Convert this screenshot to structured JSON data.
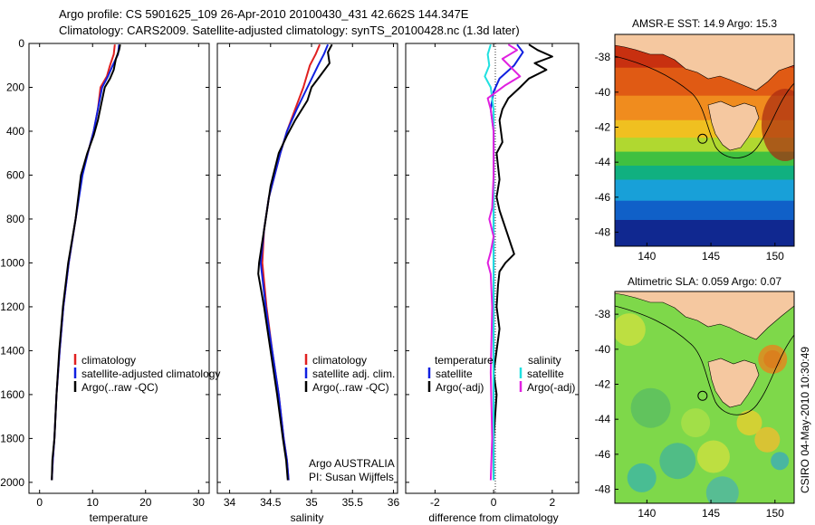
{
  "header": {
    "line1": "Argo profile: CS 5901625_109 26-Apr-2010 20100430_431 42.662S 144.347E",
    "line2": "Climatology: CARS2009. Satellite-adjusted climatology: synTS_20100428.nc (1.3d later)"
  },
  "colors": {
    "climatology": "#e02020",
    "satellite": "#1020e0",
    "argo": "#000000",
    "sal_satellite": "#20e0e0",
    "sal_argo": "#e020e0",
    "land": "#f5c8a0"
  },
  "chart_data": [
    {
      "id": "temperature",
      "type": "line",
      "xlabel": "temperature",
      "ylabel": "",
      "xlim": [
        -2,
        32
      ],
      "ylim": [
        2050,
        0
      ],
      "xticks": [
        "0",
        "10",
        "20",
        "30"
      ],
      "xtick_values": [
        0,
        10,
        20,
        30
      ],
      "yticks": [
        "0",
        "200",
        "400",
        "600",
        "800",
        "1000",
        "1200",
        "1400",
        "1600",
        "1800",
        "2000"
      ],
      "ytick_values": [
        0,
        200,
        400,
        600,
        800,
        1000,
        1200,
        1400,
        1600,
        1800,
        2000
      ],
      "legend": [
        "climatology",
        "satellite-adjusted climatology",
        "Argo(..raw -QC)"
      ],
      "series": [
        {
          "name": "climatology",
          "color_key": "climatology",
          "x": [
            14.2,
            14.0,
            13.3,
            12.7,
            11.5,
            11.0,
            10.2,
            9.1,
            8.0,
            6.8,
            5.5,
            4.5,
            3.8,
            3.2,
            2.8,
            2.5,
            2.3
          ],
          "y": [
            5,
            50,
            100,
            150,
            200,
            300,
            400,
            500,
            600,
            800,
            1000,
            1200,
            1400,
            1600,
            1800,
            1900,
            1990
          ]
        },
        {
          "name": "satellite-adjusted climatology",
          "color_key": "satellite",
          "x": [
            15.0,
            14.8,
            13.8,
            12.9,
            11.8,
            11.0,
            10.2,
            9.1,
            8.1,
            6.8,
            5.5,
            4.5,
            3.8,
            3.2,
            2.8,
            2.5,
            2.3
          ],
          "y": [
            5,
            50,
            100,
            150,
            200,
            300,
            400,
            500,
            600,
            800,
            1000,
            1200,
            1400,
            1600,
            1800,
            1900,
            1990
          ]
        },
        {
          "name": "Argo(..raw -QC)",
          "color_key": "argo",
          "x": [
            15.2,
            15.0,
            14.4,
            14.0,
            13.3,
            12.3,
            11.6,
            11.0,
            10.2,
            9.0,
            7.8,
            6.8,
            5.4,
            4.4,
            3.7,
            3.2,
            2.8,
            2.4,
            2.3
          ],
          "y": [
            5,
            30,
            70,
            120,
            160,
            200,
            280,
            350,
            420,
            500,
            600,
            800,
            1000,
            1200,
            1400,
            1600,
            1800,
            1900,
            1990
          ]
        }
      ]
    },
    {
      "id": "salinity",
      "type": "line",
      "xlabel": "salinity",
      "ylabel": "",
      "xlim": [
        33.85,
        36.05
      ],
      "ylim": [
        2050,
        0
      ],
      "xticks": [
        "34",
        "34.5",
        "35",
        "35.5",
        "36"
      ],
      "xtick_values": [
        34,
        34.5,
        35,
        35.5,
        36
      ],
      "legend": [
        "climatology",
        "satellite adj. clim.",
        "Argo(..raw -QC)"
      ],
      "annotation": [
        "Argo AUSTRALIA",
        "PI: Susan Wijffels"
      ],
      "series": [
        {
          "name": "climatology",
          "color_key": "climatology",
          "x": [
            35.1,
            35.05,
            34.98,
            34.9,
            34.8,
            34.7,
            34.62,
            34.55,
            34.48,
            34.42,
            34.4,
            34.45,
            34.52,
            34.6,
            34.66,
            34.7,
            34.72
          ],
          "y": [
            5,
            50,
            100,
            200,
            300,
            400,
            500,
            600,
            700,
            850,
            1000,
            1200,
            1400,
            1600,
            1800,
            1900,
            1990
          ]
        },
        {
          "name": "satellite adj. clim.",
          "color_key": "satellite",
          "x": [
            35.2,
            35.15,
            35.08,
            34.95,
            34.82,
            34.7,
            34.62,
            34.55,
            34.48,
            34.42,
            34.38,
            34.44,
            34.52,
            34.6,
            34.66,
            34.7,
            34.72
          ],
          "y": [
            5,
            50,
            100,
            200,
            300,
            400,
            500,
            600,
            700,
            850,
            1000,
            1200,
            1400,
            1600,
            1800,
            1900,
            1990
          ]
        },
        {
          "name": "Argo(..raw -QC)",
          "color_key": "argo",
          "x": [
            35.25,
            35.2,
            35.22,
            35.1,
            35.0,
            34.95,
            34.8,
            34.7,
            34.6,
            34.5,
            34.42,
            34.36,
            34.35,
            34.42,
            34.5,
            34.58,
            34.65,
            34.69,
            34.71
          ],
          "y": [
            5,
            40,
            90,
            150,
            200,
            260,
            350,
            420,
            500,
            650,
            850,
            1000,
            1050,
            1200,
            1400,
            1600,
            1800,
            1900,
            1990
          ]
        }
      ]
    },
    {
      "id": "difference",
      "type": "line",
      "xlabel": "difference from climatology",
      "ylabel": "",
      "xlim": [
        -3,
        2.9
      ],
      "ylim": [
        2050,
        0
      ],
      "xticks": [
        "-2",
        "0",
        "2"
      ],
      "xtick_values": [
        -2,
        0,
        2
      ],
      "legend_left_title": "temperature",
      "legend_left": [
        "satellite",
        "Argo(-adj)"
      ],
      "legend_right_title": "salinity",
      "legend_right": [
        "satellite",
        "Argo(-adj)"
      ],
      "series": [
        {
          "name": "temperature satellite",
          "color_key": "satellite",
          "x": [
            0.8,
            1.0,
            0.7,
            0.2,
            0.0,
            -0.1,
            0.0,
            0.0,
            0.0,
            0.0,
            0.0,
            0.0,
            0.0,
            0.0
          ],
          "y": [
            5,
            40,
            100,
            160,
            220,
            300,
            400,
            600,
            800,
            1000,
            1200,
            1400,
            1600,
            1990
          ]
        },
        {
          "name": "temperature Argo(-adj)",
          "color_key": "argo",
          "x": [
            1.2,
            1.5,
            2.0,
            1.4,
            1.8,
            1.2,
            0.9,
            0.5,
            0.3,
            0.2,
            0.3,
            0.1,
            0.15,
            0.2,
            0.1,
            0.2,
            0.3,
            0.5,
            0.6,
            0.7,
            0.4,
            0.2,
            0.15,
            0.1,
            0.2,
            0.1,
            0.0,
            0.1,
            0.0,
            0.0
          ],
          "y": [
            5,
            30,
            60,
            90,
            120,
            160,
            200,
            250,
            300,
            350,
            450,
            500,
            560,
            620,
            700,
            760,
            800,
            880,
            920,
            960,
            1000,
            1040,
            1100,
            1200,
            1300,
            1400,
            1500,
            1600,
            1800,
            1990
          ]
        },
        {
          "name": "salinity satellite",
          "color_key": "sal_satellite",
          "x": [
            -0.1,
            -0.2,
            -0.15,
            -0.3,
            -0.1,
            0.0,
            0.0,
            0.0,
            0.0,
            0.0,
            0.0,
            0.0
          ],
          "y": [
            5,
            50,
            100,
            150,
            200,
            300,
            500,
            800,
            1000,
            1400,
            1700,
            1990
          ]
        },
        {
          "name": "salinity Argo(-adj)",
          "color_key": "sal_argo",
          "x": [
            0.5,
            0.8,
            0.3,
            0.6,
            0.9,
            0.4,
            0.1,
            -0.2,
            -0.1,
            0.0,
            0.0,
            -0.05,
            -0.15,
            0.0,
            -0.1,
            -0.2,
            -0.1,
            -0.05,
            -0.1,
            -0.05,
            -0.1
          ],
          "y": [
            5,
            30,
            70,
            110,
            150,
            190,
            220,
            250,
            300,
            400,
            600,
            750,
            800,
            880,
            950,
            1000,
            1050,
            1200,
            1500,
            1800,
            1990
          ]
        }
      ]
    },
    {
      "id": "sst_map",
      "type": "heatmap",
      "title": "AMSR-E SST: 14.9 Argo: 15.3",
      "xlim": [
        137.5,
        151.5
      ],
      "ylim": [
        -48.8,
        -36.7
      ],
      "xticks": [
        "140",
        "145",
        "150"
      ],
      "xtick_values": [
        140,
        145,
        150
      ],
      "yticks": [
        "-38",
        "-40",
        "-42",
        "-44",
        "-46",
        "-48"
      ],
      "ytick_values": [
        -38,
        -40,
        -42,
        -44,
        -46,
        -48
      ],
      "sst_band_colors": [
        "#c83010",
        "#e05a14",
        "#f08c1e",
        "#f0c020",
        "#b0d830",
        "#40c040",
        "#10b080",
        "#18a0d8",
        "#1060c8",
        "#102890"
      ],
      "sst_band_lats": [
        -38.6,
        -40.2,
        -41.6,
        -42.6,
        -43.4,
        -44.2,
        -45.0,
        -46.2,
        -47.3,
        -48.8
      ],
      "float_lon": 144.347,
      "float_lat": -42.662
    },
    {
      "id": "sla_map",
      "type": "heatmap",
      "title": "Altimetric SLA: 0.059 Argo: 0.07",
      "xlim": [
        137.5,
        151.5
      ],
      "ylim": [
        -48.8,
        -36.7
      ],
      "xticks": [
        "140",
        "145",
        "150"
      ],
      "xtick_values": [
        140,
        145,
        150
      ],
      "yticks": [
        "-38",
        "-40",
        "-42",
        "-44",
        "-46",
        "-48"
      ],
      "ytick_values": [
        -38,
        -40,
        -42,
        -44,
        -46,
        -48
      ],
      "float_lon": 144.347,
      "float_lat": -42.662
    }
  ],
  "footer": {
    "credit": "CSIRO 04-May-2010 10:30:49"
  }
}
